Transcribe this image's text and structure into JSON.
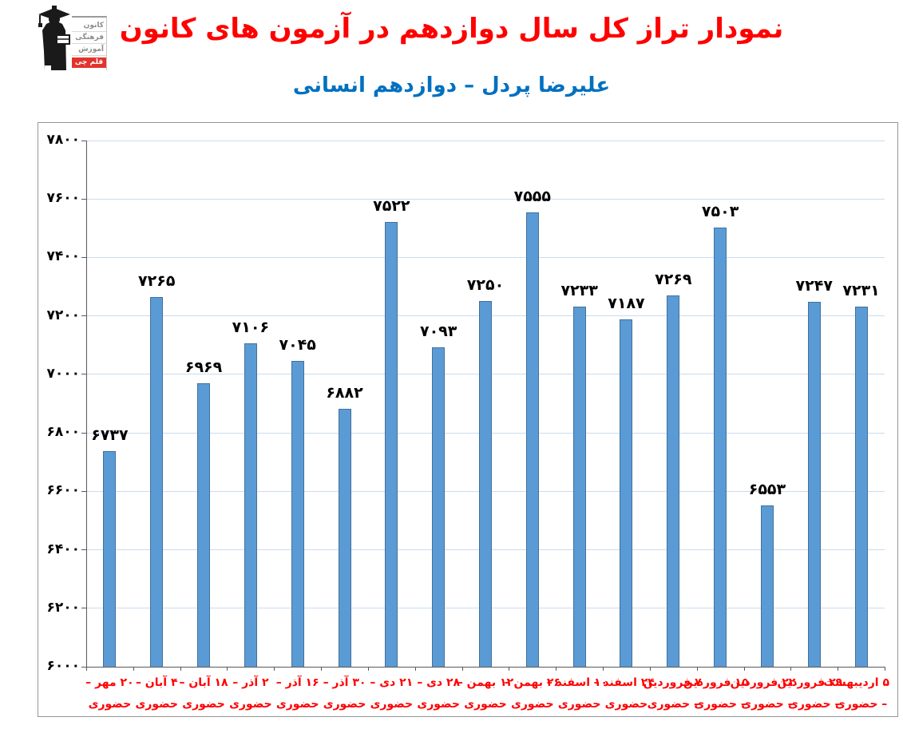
{
  "header": {
    "logo": {
      "org_line1": "کانون",
      "org_line2": "فرهنگی",
      "org_line3": "آموزش",
      "badge": "قلم چی"
    },
    "title": "نمودار تراز کل سال دوازدهم در آزمون های کانون",
    "subtitle": "علیرضا پردل – دوازدهم انسانی"
  },
  "colors": {
    "title": "#FF0000",
    "subtitle": "#0070C0",
    "bar_fill": "#5B9BD5",
    "bar_border": "#41719C",
    "gridline": "#C9DCF2",
    "axis": "#595959",
    "chart_border": "#969696",
    "x_label": "#FF0000",
    "value_label": "#000000",
    "logo_badge_bg": "#E2342C"
  },
  "chart_data": {
    "type": "bar",
    "title": "نمودار تراز کل سال دوازدهم در آزمون های کانون",
    "subtitle": "علیرضا پردل – دوازدهم انسانی",
    "direction": "rtl",
    "categories": [
      "۲۰ مهر – حضوری",
      "۴ آبان – حضوری",
      "۱۸ آبان – حضوری",
      "۲ آذر – حضوری",
      "۱۶ آذر – حضوری",
      "۳۰ آذر – حضوری",
      "۲۱ دی – حضوری",
      "۲۸ دی – حضوری",
      "۱۲ بهمن – حضوری",
      "۲۶ بهمن – حضوری",
      "۱۰ اسفند – حضوری",
      "۲۴ اسفند – حضوری",
      "۷ فروردین – حضوری",
      "۱۵ فروردین – حضوری",
      "۲۲ فروردین – حضوری",
      "۲۹ فروردین – حضوری",
      "۵ اردیبهشت – حضوری"
    ],
    "x_labels_line1": [
      "۲۰ مهر –",
      "۴ آبان –",
      "۱۸ آبان –",
      "۲ آذر –",
      "۱۶ آذر –",
      "۳۰ آذر –",
      "۲۱ دی –",
      "۲۸ دی –",
      "۱۲ بهمن –",
      "۲۶ بهمن –",
      "۱۰ اسفند –",
      "۲۴ اسفند –",
      "۷ فروردین",
      "۱۵ فروردین",
      "۲۲ فروردین",
      "۲۹ فروردین",
      "۵ اردیبهشت"
    ],
    "x_labels_line2": [
      "حضوری",
      "حضوری",
      "حضوری",
      "حضوری",
      "حضوری",
      "حضوری",
      "حضوری",
      "حضوری",
      "حضوری",
      "حضوری",
      "حضوری",
      "حضوری",
      "– حضوری",
      "– حضوری",
      "– حضوری",
      "– حضوری",
      "– حضوری"
    ],
    "values": [
      6737,
      7265,
      6969,
      7106,
      7045,
      6882,
      7522,
      7093,
      7250,
      7555,
      7233,
      7187,
      7269,
      7503,
      6553,
      7247,
      7231
    ],
    "value_labels": [
      "۶۷۳۷",
      "۷۲۶۵",
      "۶۹۶۹",
      "۷۱۰۶",
      "۷۰۴۵",
      "۶۸۸۲",
      "۷۵۲۲",
      "۷۰۹۳",
      "۷۲۵۰",
      "۷۵۵۵",
      "۷۲۳۳",
      "۷۱۸۷",
      "۷۲۶۹",
      "۷۵۰۳",
      "۶۵۵۳",
      "۷۲۴۷",
      "۷۲۳۱"
    ],
    "ylim": [
      6000,
      7800
    ],
    "yticks": [
      6000,
      6200,
      6400,
      6600,
      6800,
      7000,
      7200,
      7400,
      7600,
      7800
    ],
    "ytick_labels": [
      "۶۰۰۰",
      "۶۲۰۰",
      "۶۴۰۰",
      "۶۶۰۰",
      "۶۸۰۰",
      "۷۰۰۰",
      "۷۲۰۰",
      "۷۴۰۰",
      "۷۶۰۰",
      "۷۸۰۰"
    ],
    "grid": true,
    "legend": "none",
    "xlabel": "",
    "ylabel": ""
  }
}
